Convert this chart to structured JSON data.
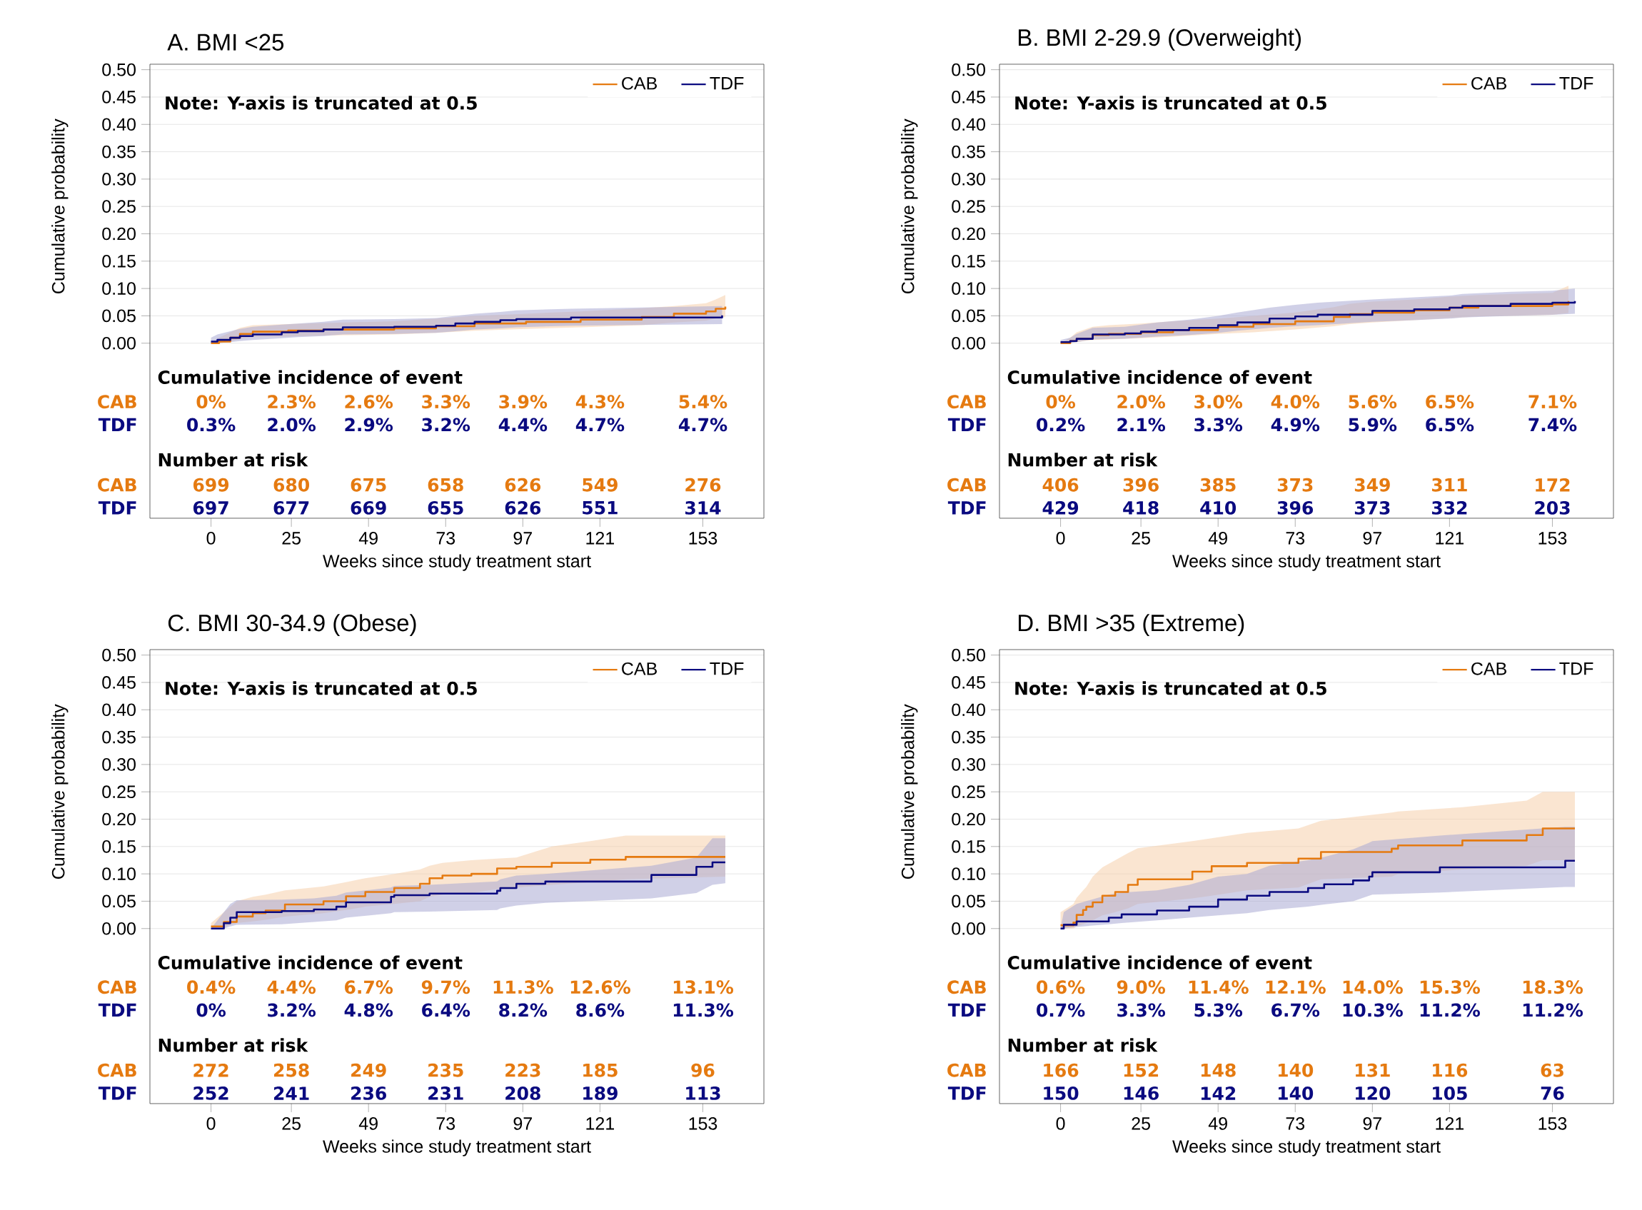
{
  "chart_data": [
    {
      "type": "step",
      "title": "A. BMI <25",
      "xlabel": "Weeks since study treatment start",
      "ylabel": "Cumulative probability",
      "xlim": [
        -19,
        172
      ],
      "xticks": [
        0,
        25,
        49,
        73,
        97,
        121,
        153
      ],
      "ylim": [
        -0.32,
        0.51
      ],
      "yticks": [
        {
          "value": 0,
          "label": "0.00"
        },
        {
          "value": 0.05,
          "label": "0.05"
        },
        {
          "value": 0.1,
          "label": "0.10"
        },
        {
          "value": 0.15,
          "label": "0.15"
        },
        {
          "value": 0.2,
          "label": "0.20"
        },
        {
          "value": 0.25,
          "label": "0.25"
        },
        {
          "value": 0.3,
          "label": "0.30"
        },
        {
          "value": 0.35,
          "label": "0.35"
        },
        {
          "value": 0.4,
          "label": "0.40"
        },
        {
          "value": 0.45,
          "label": "0.45"
        },
        {
          "value": 0.5,
          "label": "0.50"
        }
      ],
      "grid": "y",
      "legend": "top right",
      "series": [
        {
          "name": "CAB",
          "color": "#e57a10",
          "x": [
            0,
            2.5,
            6,
            9,
            13,
            24,
            35,
            57,
            70,
            82,
            98,
            115,
            134,
            144,
            154,
            157,
            160
          ],
          "values": [
            0,
            0.003,
            0.01,
            0.017,
            0.021,
            0.023,
            0.025,
            0.027,
            0.031,
            0.036,
            0.039,
            0.043,
            0.048,
            0.054,
            0.058,
            0.063,
            0.067
          ],
          "upper": [
            0,
            0.01,
            0.02,
            0.028,
            0.033,
            0.035,
            0.037,
            0.04,
            0.045,
            0.05,
            0.054,
            0.058,
            0.064,
            0.068,
            0.073,
            0.08,
            0.088
          ],
          "lower": [
            0,
            0,
            0.003,
            0.008,
            0.011,
            0.012,
            0.014,
            0.016,
            0.019,
            0.023,
            0.026,
            0.029,
            0.033,
            0.038,
            0.041,
            0.045,
            0.048
          ]
        },
        {
          "name": "TDF",
          "color": "#0a0a80",
          "x": [
            0,
            2,
            6,
            9,
            13,
            22,
            27,
            35,
            41,
            57,
            70,
            76,
            82,
            90,
            95,
            112,
            159
          ],
          "values": [
            0.003,
            0.006,
            0.01,
            0.013,
            0.016,
            0.02,
            0.022,
            0.025,
            0.029,
            0.03,
            0.032,
            0.036,
            0.039,
            0.042,
            0.044,
            0.047,
            0.051
          ],
          "upper": [
            0.01,
            0.016,
            0.022,
            0.026,
            0.03,
            0.034,
            0.036,
            0.039,
            0.043,
            0.044,
            0.046,
            0.05,
            0.054,
            0.057,
            0.06,
            0.063,
            0.068
          ],
          "lower": [
            0,
            0,
            0.002,
            0.004,
            0.006,
            0.009,
            0.011,
            0.013,
            0.016,
            0.017,
            0.019,
            0.022,
            0.025,
            0.027,
            0.029,
            0.032,
            0.035
          ]
        }
      ],
      "annotations": [
        "Note: Y-axis is truncated at 0.5",
        "Cumulative incidence of event",
        "0%",
        "2.3%",
        "2.6%",
        "3.3%",
        "3.9%",
        "4.3%",
        "5.4%",
        "0.3%",
        "2.0%",
        "2.9%",
        "3.2%",
        "4.4%",
        "4.7%",
        "4.7%",
        "Number at risk",
        "699",
        "680",
        "675",
        "658",
        "626",
        "549",
        "276",
        "697",
        "677",
        "669",
        "655",
        "626",
        "551",
        "314"
      ]
    },
    {
      "type": "step",
      "title": "B. BMI 2-29.9 (Overweight)",
      "xlabel": "Weeks since study treatment start",
      "ylabel": "Cumulative probability",
      "xlim": [
        -19,
        172
      ],
      "xticks": [
        0,
        25,
        49,
        73,
        97,
        121,
        153
      ],
      "ylim": [
        -0.32,
        0.51
      ],
      "yticks": [
        {
          "value": 0,
          "label": "0.00"
        },
        {
          "value": 0.05,
          "label": "0.05"
        },
        {
          "value": 0.1,
          "label": "0.10"
        },
        {
          "value": 0.15,
          "label": "0.15"
        },
        {
          "value": 0.2,
          "label": "0.20"
        },
        {
          "value": 0.25,
          "label": "0.25"
        },
        {
          "value": 0.3,
          "label": "0.30"
        },
        {
          "value": 0.35,
          "label": "0.35"
        },
        {
          "value": 0.4,
          "label": "0.40"
        },
        {
          "value": 0.45,
          "label": "0.45"
        },
        {
          "value": 0.5,
          "label": "0.50"
        }
      ],
      "grid": "y",
      "legend": "top right",
      "series": [
        {
          "name": "CAB",
          "color": "#e57a10",
          "x": [
            0,
            3,
            5,
            10,
            15,
            25,
            35,
            49,
            60,
            73,
            85,
            90,
            97,
            110,
            121,
            130,
            153,
            158
          ],
          "values": [
            0,
            0.004,
            0.008,
            0.015,
            0.017,
            0.02,
            0.024,
            0.03,
            0.035,
            0.04,
            0.048,
            0.053,
            0.056,
            0.06,
            0.065,
            0.068,
            0.071,
            0.077
          ],
          "upper": [
            0,
            0.01,
            0.02,
            0.03,
            0.033,
            0.036,
            0.04,
            0.045,
            0.05,
            0.056,
            0.066,
            0.072,
            0.076,
            0.08,
            0.085,
            0.088,
            0.092,
            0.105
          ],
          "lower": [
            0,
            0,
            0.002,
            0.006,
            0.007,
            0.009,
            0.012,
            0.017,
            0.02,
            0.025,
            0.031,
            0.035,
            0.038,
            0.042,
            0.046,
            0.049,
            0.052,
            0.055
          ]
        },
        {
          "name": "TDF",
          "color": "#0a0a80",
          "x": [
            0,
            3,
            5,
            10,
            20,
            25,
            30,
            40,
            49,
            55,
            65,
            73,
            80,
            97,
            110,
            121,
            125,
            140,
            153,
            160
          ],
          "values": [
            0.002,
            0.004,
            0.008,
            0.016,
            0.018,
            0.021,
            0.024,
            0.028,
            0.033,
            0.038,
            0.045,
            0.049,
            0.052,
            0.059,
            0.062,
            0.065,
            0.068,
            0.072,
            0.074,
            0.077
          ],
          "upper": [
            0.006,
            0.01,
            0.017,
            0.028,
            0.03,
            0.034,
            0.038,
            0.043,
            0.05,
            0.056,
            0.065,
            0.07,
            0.074,
            0.08,
            0.084,
            0.087,
            0.09,
            0.094,
            0.096,
            0.1
          ],
          "lower": [
            0,
            0,
            0.002,
            0.007,
            0.008,
            0.01,
            0.012,
            0.015,
            0.019,
            0.023,
            0.028,
            0.031,
            0.033,
            0.039,
            0.042,
            0.045,
            0.047,
            0.05,
            0.052,
            0.054
          ]
        }
      ],
      "annotations": [
        "Note: Y-axis is truncated at 0.5",
        "Cumulative incidence of event",
        "0%",
        "2.0%",
        "3.0%",
        "4.0%",
        "5.6%",
        "6.5%",
        "7.1%",
        "0.2%",
        "2.1%",
        "3.3%",
        "4.9%",
        "5.9%",
        "6.5%",
        "7.4%",
        "Number at risk",
        "406",
        "396",
        "385",
        "373",
        "349",
        "311",
        "172",
        "429",
        "418",
        "410",
        "396",
        "373",
        "332",
        "203"
      ]
    },
    {
      "type": "step",
      "title": "C. BMI 30-34.9 (Obese)",
      "xlabel": "Weeks since study treatment start",
      "ylabel": "Cumulative probability",
      "xlim": [
        -19,
        172
      ],
      "xticks": [
        0,
        25,
        49,
        73,
        97,
        121,
        153
      ],
      "ylim": [
        -0.32,
        0.51
      ],
      "yticks": [
        {
          "value": 0,
          "label": "0.00"
        },
        {
          "value": 0.05,
          "label": "0.05"
        },
        {
          "value": 0.1,
          "label": "0.10"
        },
        {
          "value": 0.15,
          "label": "0.15"
        },
        {
          "value": 0.2,
          "label": "0.20"
        },
        {
          "value": 0.25,
          "label": "0.25"
        },
        {
          "value": 0.3,
          "label": "0.30"
        },
        {
          "value": 0.35,
          "label": "0.35"
        },
        {
          "value": 0.4,
          "label": "0.40"
        },
        {
          "value": 0.45,
          "label": "0.45"
        },
        {
          "value": 0.5,
          "label": "0.50"
        }
      ],
      "grid": "y",
      "legend": "top right",
      "series": [
        {
          "name": "CAB",
          "color": "#e57a10",
          "x": [
            0,
            4,
            8,
            13,
            17,
            23,
            35,
            42,
            48,
            57,
            65,
            68,
            72,
            81,
            89,
            95,
            106,
            118,
            129,
            160
          ],
          "values": [
            0.004,
            0.012,
            0.022,
            0.028,
            0.033,
            0.044,
            0.05,
            0.059,
            0.067,
            0.074,
            0.082,
            0.092,
            0.097,
            0.1,
            0.11,
            0.113,
            0.12,
            0.126,
            0.131,
            0.131
          ],
          "upper": [
            0.01,
            0.03,
            0.05,
            0.058,
            0.062,
            0.07,
            0.077,
            0.085,
            0.092,
            0.1,
            0.108,
            0.115,
            0.12,
            0.125,
            0.128,
            0.13,
            0.15,
            0.16,
            0.17,
            0.17
          ],
          "lower": [
            0,
            0.003,
            0.01,
            0.013,
            0.016,
            0.022,
            0.028,
            0.034,
            0.04,
            0.045,
            0.05,
            0.058,
            0.062,
            0.065,
            0.072,
            0.075,
            0.08,
            0.085,
            0.09,
            0.095
          ]
        },
        {
          "name": "TDF",
          "color": "#0a0a80",
          "x": [
            0,
            4,
            6,
            8,
            22,
            32,
            39,
            42,
            56,
            57,
            68,
            89,
            90,
            95,
            104,
            137,
            151,
            156,
            160
          ],
          "values": [
            0,
            0.01,
            0.02,
            0.03,
            0.032,
            0.035,
            0.04,
            0.048,
            0.058,
            0.061,
            0.064,
            0.069,
            0.074,
            0.082,
            0.086,
            0.098,
            0.113,
            0.121,
            0.121
          ],
          "upper": [
            0,
            0.03,
            0.045,
            0.052,
            0.053,
            0.055,
            0.06,
            0.066,
            0.075,
            0.078,
            0.08,
            0.086,
            0.09,
            0.097,
            0.1,
            0.115,
            0.13,
            0.165,
            0.165
          ],
          "lower": [
            0,
            0,
            0.004,
            0.007,
            0.008,
            0.012,
            0.015,
            0.02,
            0.028,
            0.03,
            0.031,
            0.034,
            0.037,
            0.042,
            0.047,
            0.055,
            0.065,
            0.08,
            0.083
          ]
        }
      ],
      "annotations": [
        "Note: Y-axis is truncated at 0.5",
        "Cumulative incidence of event",
        "0.4%",
        "4.4%",
        "6.7%",
        "9.7%",
        "11.3%",
        "12.6%",
        "13.1%",
        "0%",
        "3.2%",
        "4.8%",
        "6.4%",
        "8.2%",
        "8.6%",
        "11.3%",
        "Number at risk",
        "272",
        "258",
        "249",
        "235",
        "223",
        "185",
        "96",
        "252",
        "241",
        "236",
        "231",
        "208",
        "189",
        "113"
      ]
    },
    {
      "type": "step",
      "title": "D. BMI >35 (Extreme)",
      "xlabel": "Weeks since study treatment start",
      "ylabel": "Cumulative probability",
      "xlim": [
        -19,
        172
      ],
      "xticks": [
        0,
        25,
        49,
        73,
        97,
        121,
        153
      ],
      "ylim": [
        -0.32,
        0.51
      ],
      "yticks": [
        {
          "value": 0,
          "label": "0.00"
        },
        {
          "value": 0.05,
          "label": "0.05"
        },
        {
          "value": 0.1,
          "label": "0.10"
        },
        {
          "value": 0.15,
          "label": "0.15"
        },
        {
          "value": 0.2,
          "label": "0.20"
        },
        {
          "value": 0.25,
          "label": "0.25"
        },
        {
          "value": 0.3,
          "label": "0.30"
        },
        {
          "value": 0.35,
          "label": "0.35"
        },
        {
          "value": 0.4,
          "label": "0.40"
        },
        {
          "value": 0.45,
          "label": "0.45"
        },
        {
          "value": 0.5,
          "label": "0.50"
        }
      ],
      "grid": "y",
      "legend": "top right",
      "series": [
        {
          "name": "CAB",
          "color": "#e57a10",
          "x": [
            0,
            4,
            5,
            7,
            8,
            10,
            13,
            17,
            21,
            24,
            41,
            47,
            58,
            74,
            81,
            103,
            105,
            125,
            145,
            150,
            160
          ],
          "values": [
            0.006,
            0.011,
            0.025,
            0.034,
            0.04,
            0.048,
            0.06,
            0.067,
            0.08,
            0.09,
            0.104,
            0.114,
            0.12,
            0.128,
            0.14,
            0.146,
            0.152,
            0.161,
            0.171,
            0.183,
            0.183
          ],
          "upper": [
            0.03,
            0.045,
            0.056,
            0.07,
            0.076,
            0.095,
            0.112,
            0.125,
            0.138,
            0.147,
            0.16,
            0.165,
            0.175,
            0.183,
            0.197,
            0.212,
            0.214,
            0.222,
            0.234,
            0.25,
            0.25
          ],
          "lower": [
            0,
            0,
            0.004,
            0.008,
            0.01,
            0.015,
            0.024,
            0.03,
            0.037,
            0.045,
            0.055,
            0.06,
            0.07,
            0.075,
            0.09,
            0.095,
            0.1,
            0.108,
            0.115,
            0.125,
            0.125
          ]
        },
        {
          "name": "TDF",
          "color": "#0a0a80",
          "x": [
            0,
            1,
            5,
            15,
            19,
            30,
            40,
            49,
            58,
            65,
            77,
            82,
            91,
            96,
            97,
            118,
            157,
            160
          ],
          "values": [
            0,
            0.007,
            0.013,
            0.02,
            0.026,
            0.033,
            0.04,
            0.053,
            0.06,
            0.067,
            0.074,
            0.081,
            0.088,
            0.095,
            0.103,
            0.112,
            0.124,
            0.124
          ],
          "upper": [
            0,
            0.03,
            0.045,
            0.062,
            0.066,
            0.07,
            0.08,
            0.095,
            0.1,
            0.115,
            0.125,
            0.131,
            0.145,
            0.157,
            0.16,
            0.17,
            0.186,
            0.186
          ],
          "lower": [
            0,
            0,
            0.003,
            0.008,
            0.01,
            0.015,
            0.02,
            0.024,
            0.028,
            0.034,
            0.04,
            0.044,
            0.05,
            0.06,
            0.062,
            0.066,
            0.076,
            0.076
          ]
        }
      ],
      "annotations": [
        "Note: Y-axis is truncated at 0.5",
        "Cumulative incidence of event",
        "0.6%",
        "9.0%",
        "11.4%",
        "12.1%",
        "14.0%",
        "15.3%",
        "18.3%",
        "0.7%",
        "3.3%",
        "5.3%",
        "6.7%",
        "10.3%",
        "11.2%",
        "11.2%",
        "Number at risk",
        "166",
        "152",
        "148",
        "140",
        "131",
        "116",
        "63",
        "150",
        "146",
        "142",
        "140",
        "120",
        "105",
        "76"
      ]
    }
  ]
}
